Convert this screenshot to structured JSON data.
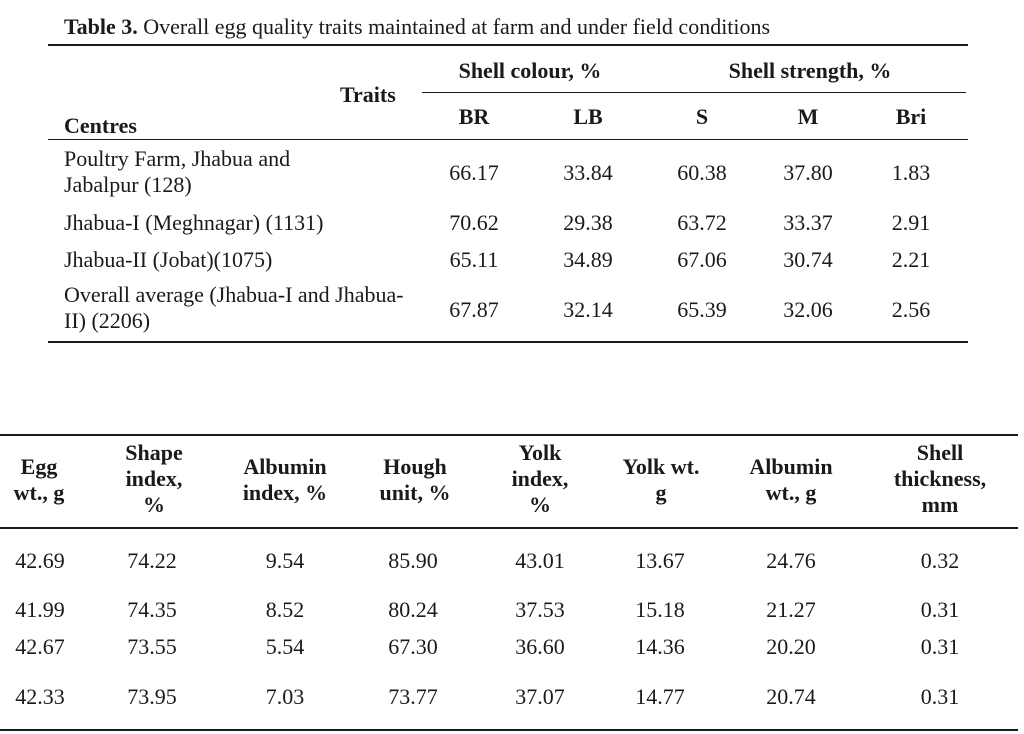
{
  "table1": {
    "caption_prefix": "Table 3.",
    "caption_text": " Overall egg quality traits maintained at farm and under field conditions",
    "header": {
      "traits": "Traits",
      "centres": "Centres",
      "shell_colour": "Shell colour, %",
      "shell_strength": "Shell strength,  %",
      "subcols": [
        "BR",
        "LB",
        "S",
        "M",
        "Bri"
      ]
    },
    "rows": [
      {
        "centre": "Poultry Farm, Jhabua and Jabalpur (128)",
        "values": [
          "66.17",
          "33.84",
          "60.38",
          "37.80",
          "1.83"
        ]
      },
      {
        "centre": "Jhabua-I (Meghnagar) (1131)",
        "values": [
          "70.62",
          "29.38",
          "63.72",
          "33.37",
          "2.91"
        ]
      },
      {
        "centre": "Jhabua-II (Jobat)(1075)",
        "values": [
          "65.11",
          "34.89",
          "67.06",
          "30.74",
          "2.21"
        ]
      },
      {
        "centre": "Overall average (Jhabua-I and Jhabua-II) (2206)",
        "values": [
          "67.87",
          "32.14",
          "65.39",
          "32.06",
          "2.56"
        ]
      }
    ]
  },
  "table2": {
    "headers": [
      [
        "Egg",
        "wt.,  g"
      ],
      [
        "Shape",
        "index,",
        "%"
      ],
      [
        "Albumin",
        "index,  %"
      ],
      [
        "Hough",
        "unit,  %"
      ],
      [
        "Yolk",
        "index,",
        "%"
      ],
      [
        "Yolk wt.",
        "g"
      ],
      [
        "Albumin",
        "wt., g"
      ],
      [
        "Shell",
        "thickness,",
        "mm"
      ]
    ],
    "rows": [
      [
        "42.69",
        "74.22",
        "9.54",
        "85.90",
        "43.01",
        "13.67",
        "24.76",
        "0.32"
      ],
      [
        "41.99",
        "74.35",
        "8.52",
        "80.24",
        "37.53",
        "15.18",
        "21.27",
        "0.31"
      ],
      [
        "42.67",
        "73.55",
        "5.54",
        "67.30",
        "36.60",
        "14.36",
        "20.20",
        "0.31"
      ],
      [
        "42.33",
        "73.95",
        "7.03",
        "73.77",
        "37.07",
        "14.77",
        "20.74",
        "0.31"
      ]
    ]
  }
}
